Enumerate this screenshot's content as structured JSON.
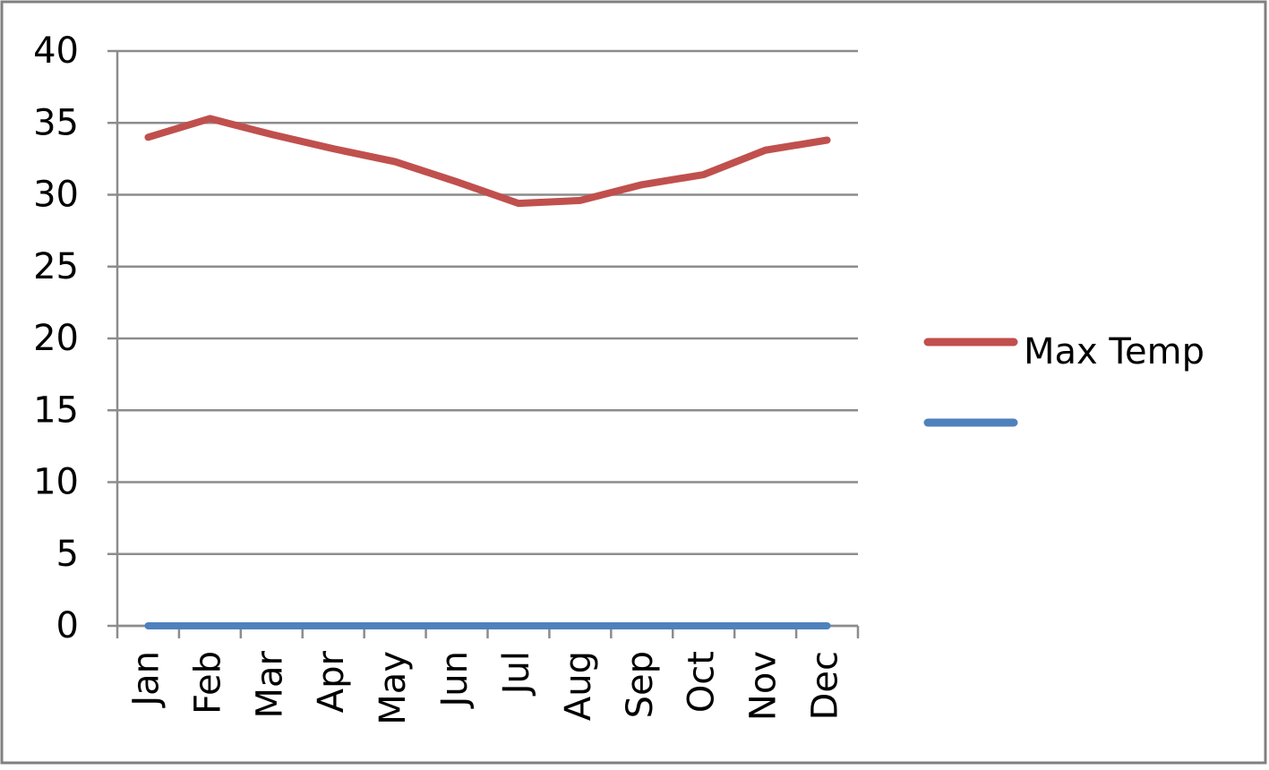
{
  "chart_data": {
    "type": "line",
    "categories": [
      "Jan",
      "Feb",
      "Mar",
      "Apr",
      "May",
      "Jun",
      "Jul",
      "Aug",
      "Sep",
      "Oct",
      "Nov",
      "Dec"
    ],
    "series": [
      {
        "name": "Max Temp",
        "color": "#c0504d",
        "values": [
          34.0,
          35.3,
          34.2,
          33.2,
          32.3,
          30.9,
          29.4,
          29.6,
          30.7,
          31.4,
          33.1,
          33.8
        ]
      },
      {
        "color": "#4f81bd",
        "values": [
          0,
          0,
          0,
          0,
          0,
          0,
          0,
          0,
          0,
          0,
          0,
          0
        ]
      }
    ],
    "ylim": [
      0,
      40
    ],
    "yticks": [
      0,
      5,
      10,
      15,
      20,
      25,
      30,
      35,
      40
    ],
    "grid": true,
    "legend": "right"
  }
}
